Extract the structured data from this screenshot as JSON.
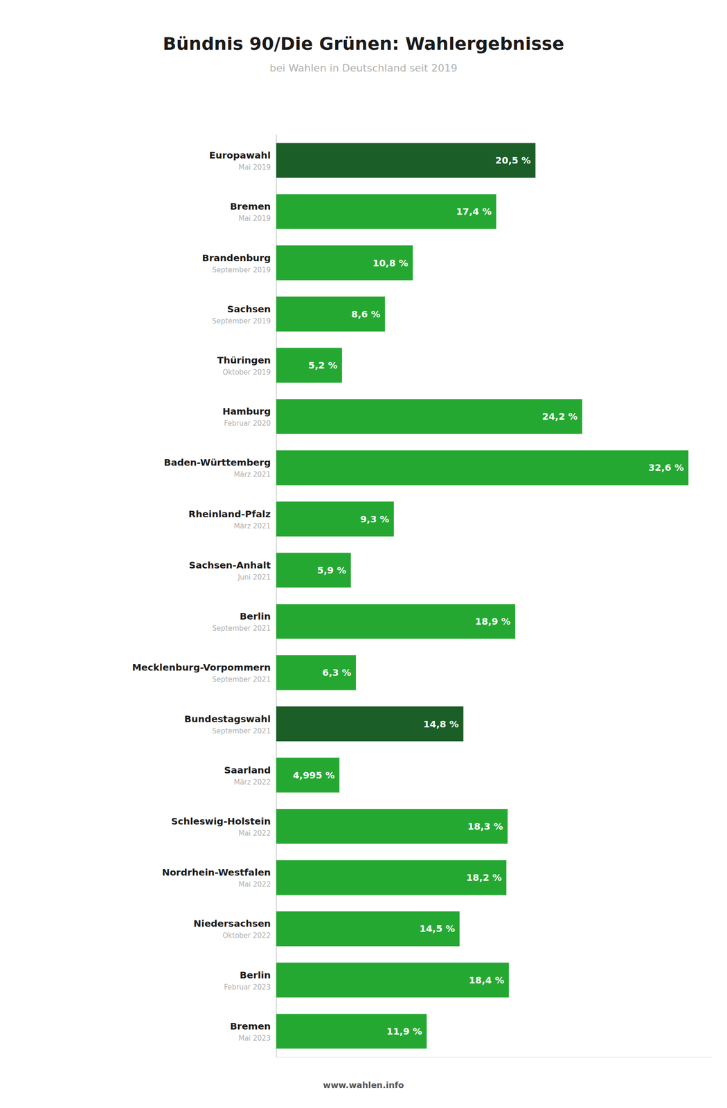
{
  "chart_data": {
    "type": "bar",
    "orientation": "horizontal",
    "title": "Bündnis 90/Die Grünen: Wahlergebnisse",
    "subtitle": "bei Wahlen in Deutschland seit 2019",
    "footer": "www.wahlen.info",
    "categories": [
      "Europawahl",
      "Bremen",
      "Brandenburg",
      "Sachsen",
      "Thüringen",
      "Hamburg",
      "Baden-Württemberg",
      "Rheinland-Pfalz",
      "Sachsen-Anhalt",
      "Berlin",
      "Mecklenburg-Vorpommern",
      "Bundestagswahl",
      "Saarland",
      "Schleswig-Holstein",
      "Nordrhein-Westfalen",
      "Niedersachsen",
      "Berlin",
      "Bremen"
    ],
    "dates": [
      "Mai 2019",
      "Mai 2019",
      "September 2019",
      "September 2019",
      "Oktober 2019",
      "Februar 2020",
      "März 2021",
      "März 2021",
      "Juni 2021",
      "September 2021",
      "September 2021",
      "September 2021",
      "März 2022",
      "Mai 2022",
      "Mai 2022",
      "Oktober 2022",
      "Februar 2023",
      "Mai 2023"
    ],
    "values": [
      20.5,
      17.4,
      10.8,
      8.6,
      5.2,
      24.2,
      32.6,
      9.3,
      5.9,
      18.9,
      6.3,
      14.8,
      4.995,
      18.3,
      18.2,
      14.5,
      18.4,
      11.9
    ],
    "value_labels": [
      "20,5 %",
      "17,4 %",
      "10,8 %",
      "8,6 %",
      "5,2 %",
      "24,2 %",
      "32,6 %",
      "9,3 %",
      "5,9 %",
      "18,9 %",
      "6,3 %",
      "14,8 %",
      "4,995 %",
      "18,3 %",
      "18,2 %",
      "14,5 %",
      "18,4 %",
      "11,9 %"
    ],
    "colors": [
      "#1b5e27",
      "#25a832",
      "#25a832",
      "#25a832",
      "#25a832",
      "#25a832",
      "#25a832",
      "#25a832",
      "#25a832",
      "#25a832",
      "#25a832",
      "#1b5e27",
      "#25a832",
      "#25a832",
      "#25a832",
      "#25a832",
      "#25a832",
      "#25a832"
    ],
    "xlim": [
      0,
      34.5
    ],
    "xticks": [],
    "tick_labels": false,
    "grid": false,
    "data_labels": true
  }
}
